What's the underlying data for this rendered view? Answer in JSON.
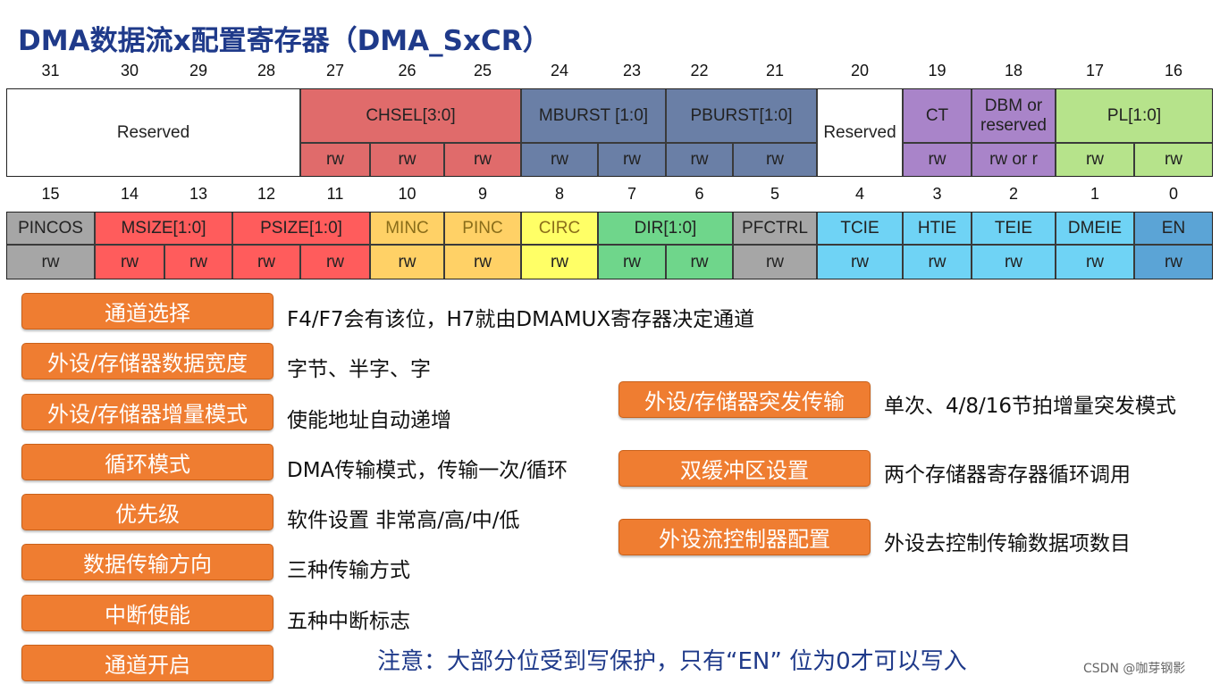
{
  "title": "DMA数据流x配置寄存器（DMA_SxCR）",
  "bit_numbers_high": [
    "31",
    "30",
    "29",
    "28",
    "27",
    "26",
    "25",
    "24",
    "23",
    "22",
    "21",
    "20",
    "19",
    "18",
    "17",
    "16"
  ],
  "bit_numbers_low": [
    "15",
    "14",
    "13",
    "12",
    "11",
    "10",
    "9",
    "8",
    "7",
    "6",
    "5",
    "4",
    "3",
    "2",
    "1",
    "0"
  ],
  "colors": {
    "chsel": "#e06b6b",
    "burst": "#6a7fa6",
    "ct_dbm": "#a984c9",
    "pl": "#b6e38b",
    "pincos": "#a6a6a6",
    "size": "#ff5c5c",
    "inc": "#ffd166",
    "circ": "#ffff66",
    "dir": "#6fd68b",
    "pfctrl": "#a6a6a6",
    "irq": "#6fd3f5",
    "en": "#5ba4d6",
    "pill": "#ef7d31",
    "title": "#1f3a8a"
  },
  "high_fields": [
    {
      "label": "Reserved",
      "color": "#ffffff"
    },
    {
      "label": "CHSEL[3:0]",
      "color": "#e06b6b"
    },
    {
      "label": "MBURST [1:0]",
      "color": "#6a7fa6"
    },
    {
      "label": "PBURST[1:0]",
      "color": "#6a7fa6"
    },
    {
      "label": "Reserved",
      "color": "#ffffff"
    },
    {
      "label": "CT",
      "color": "#a984c9"
    },
    {
      "label": "DBM or reserved",
      "color": "#a984c9"
    },
    {
      "label": "PL[1:0]",
      "color": "#b6e38b"
    }
  ],
  "high_access": [
    "rw",
    "rw",
    "rw",
    "rw",
    "rw",
    "rw",
    "rw",
    "rw",
    "rw",
    "rw or r",
    "rw",
    "rw"
  ],
  "low_fields": [
    {
      "label": "PINCOS",
      "color": "#a6a6a6"
    },
    {
      "label": "MSIZE[1:0]",
      "color": "#ff5c5c"
    },
    {
      "label": "PSIZE[1:0]",
      "color": "#ff5c5c"
    },
    {
      "label": "MINC",
      "color": "#ffd166"
    },
    {
      "label": "PINC",
      "color": "#ffd166"
    },
    {
      "label": "CIRC",
      "color": "#ffff66"
    },
    {
      "label": "DIR[1:0]",
      "color": "#6fd68b"
    },
    {
      "label": "PFCTRL",
      "color": "#a6a6a6"
    },
    {
      "label": "TCIE",
      "color": "#6fd3f5"
    },
    {
      "label": "HTIE",
      "color": "#6fd3f5"
    },
    {
      "label": "TEIE",
      "color": "#6fd3f5"
    },
    {
      "label": "DMEIE",
      "color": "#6fd3f5"
    },
    {
      "label": "EN",
      "color": "#5ba4d6"
    }
  ],
  "low_access": [
    "rw",
    "rw",
    "rw",
    "rw",
    "rw",
    "rw",
    "rw",
    "rw",
    "rw",
    "rw",
    "rw",
    "rw",
    "rw",
    "rw",
    "rw",
    "rw"
  ],
  "left_items": [
    {
      "label": "通道选择",
      "desc": "F4/F7会有该位，H7就由DMAMUX寄存器决定通道"
    },
    {
      "label": "外设/存储器数据宽度",
      "desc": "字节、半字、字"
    },
    {
      "label": "外设/存储器增量模式",
      "desc": "使能地址自动递增"
    },
    {
      "label": "循环模式",
      "desc": "DMA传输模式，传输一次/循环"
    },
    {
      "label": "优先级",
      "desc": "软件设置 非常高/高/中/低"
    },
    {
      "label": "数据传输方向",
      "desc": "三种传输方式"
    },
    {
      "label": "中断使能",
      "desc": "五种中断标志"
    },
    {
      "label": "通道开启",
      "desc": ""
    }
  ],
  "right_items": [
    {
      "label": "外设/存储器突发传输",
      "desc": "单次、4/8/16节拍增量突发模式"
    },
    {
      "label": "双缓冲区设置",
      "desc": "两个存储器寄存器循环调用"
    },
    {
      "label": "外设流控制器配置",
      "desc": "外设去控制传输数据项数目"
    }
  ],
  "note": "注意：大部分位受到写保护，只有“EN” 位为0才可以写入",
  "watermark": "CSDN @咖芽钢影"
}
